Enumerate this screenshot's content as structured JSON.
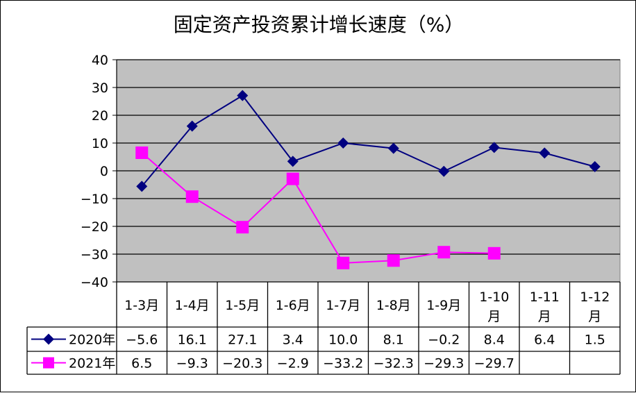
{
  "chart_data": {
    "type": "line",
    "title": "固定资产投资累计增长速度（%）",
    "categories": [
      [
        "1-3月"
      ],
      [
        "1-4月"
      ],
      [
        "1-5月"
      ],
      [
        "1-6月"
      ],
      [
        "1-7月"
      ],
      [
        "1-8月"
      ],
      [
        "1-9月"
      ],
      [
        "1-10",
        "月"
      ],
      [
        "1-11",
        "月"
      ],
      [
        "1-12",
        "月"
      ]
    ],
    "ylim": [
      -40,
      40
    ],
    "yticks": [
      40,
      30,
      20,
      10,
      0,
      -10,
      -20,
      -30,
      -40
    ],
    "ytick_labels": [
      "40",
      "30",
      "20",
      "10",
      "0",
      "−10",
      "−20",
      "−30",
      "−40"
    ],
    "grid": true,
    "legend": "bottom data table",
    "series": [
      {
        "name": "2020年",
        "color": "#000080",
        "marker": "diamond",
        "values": [
          -5.6,
          16.1,
          27.1,
          3.4,
          10.0,
          8.1,
          -0.2,
          8.4,
          6.4,
          1.5
        ],
        "labels": [
          "−5.6",
          "16.1",
          "27.1",
          "3.4",
          "10.0",
          "8.1",
          "−0.2",
          "8.4",
          "6.4",
          "1.5"
        ]
      },
      {
        "name": "2021年",
        "color": "#ff00ff",
        "marker": "square",
        "values": [
          6.5,
          -9.3,
          -20.3,
          -2.9,
          -33.2,
          -32.3,
          -29.3,
          -29.7,
          null,
          null
        ],
        "labels": [
          "6.5",
          "−9.3",
          "−20.3",
          "−2.9",
          "−33.2",
          "−32.3",
          "−29.3",
          "−29.7",
          "",
          ""
        ]
      }
    ]
  }
}
